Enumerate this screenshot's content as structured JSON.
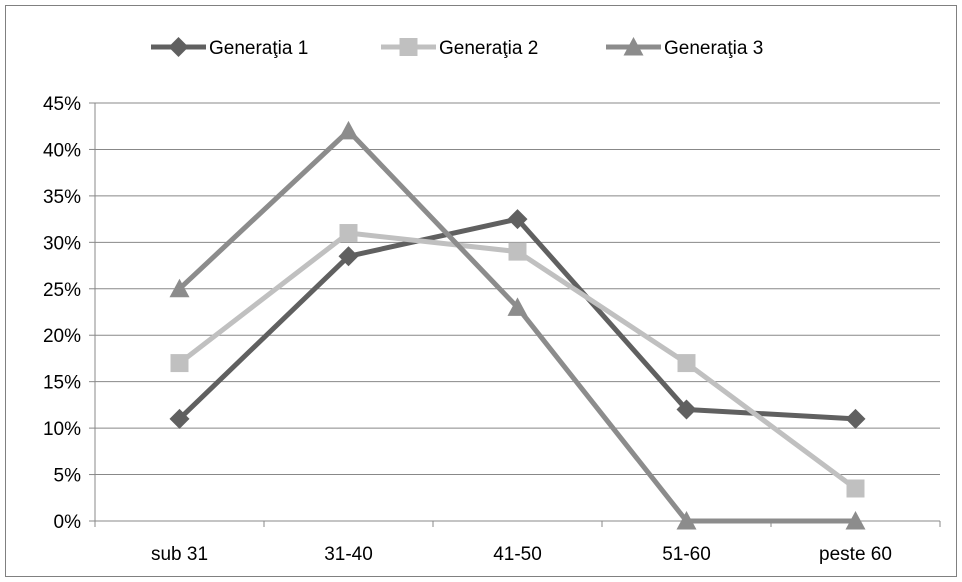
{
  "chart_data": {
    "type": "line",
    "categories": [
      "sub 31",
      "31-40",
      "41-50",
      "51-60",
      "peste 60"
    ],
    "y_ticks": [
      "0%",
      "5%",
      "10%",
      "15%",
      "20%",
      "25%",
      "30%",
      "35%",
      "40%",
      "45%"
    ],
    "ylim": [
      0,
      45
    ],
    "y_unit": "%",
    "grid": "horizontal",
    "legend_position": "top",
    "series": [
      {
        "name": "Generaţia 1",
        "values": [
          11,
          28.5,
          32.5,
          12,
          11
        ],
        "color": "#606060",
        "marker": "diamond"
      },
      {
        "name": "Generaţia 2",
        "values": [
          17,
          31,
          29,
          17,
          3.5
        ],
        "color": "#c0c0c0",
        "marker": "square"
      },
      {
        "name": "Generaţia 3",
        "values": [
          25,
          42,
          23,
          0,
          0
        ],
        "color": "#8c8c8c",
        "marker": "triangle"
      }
    ]
  }
}
